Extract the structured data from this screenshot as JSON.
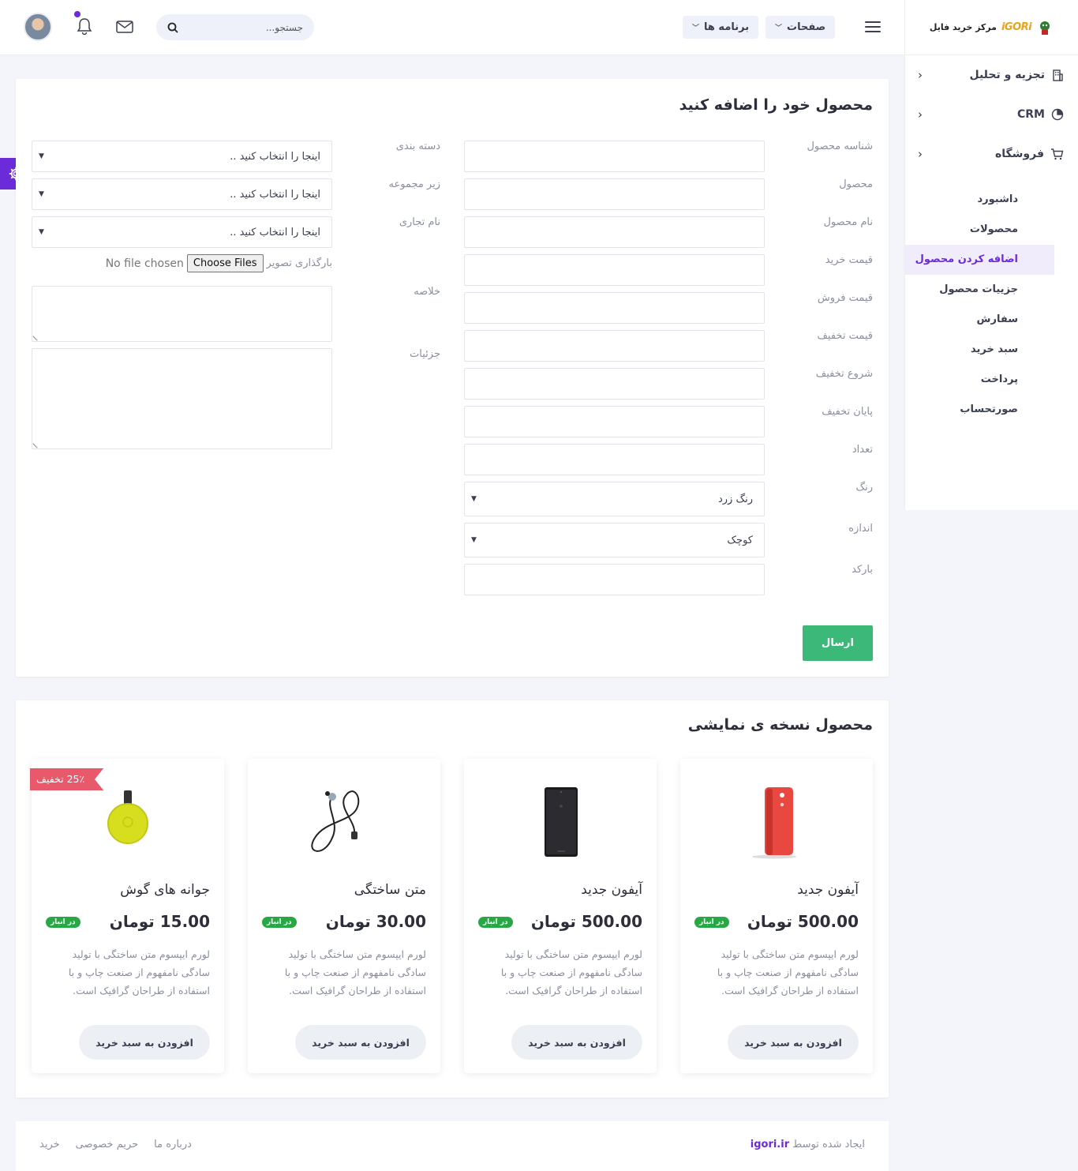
{
  "brand": {
    "logo_text": "مرکز خرید فایل",
    "logo_mark": "iGORi"
  },
  "sidebar": {
    "groups": [
      {
        "label": "تجزیه و تحلیل",
        "icon": "building-icon"
      },
      {
        "label": "CRM",
        "icon": "pie-chart-icon"
      },
      {
        "label": "فروشگاه",
        "icon": "cart-icon"
      }
    ],
    "items": [
      {
        "label": "داشبورد"
      },
      {
        "label": "محصولات"
      },
      {
        "label": "اضافه کردن محصول",
        "active": true
      },
      {
        "label": "جزییات محصول"
      },
      {
        "label": "سفارش"
      },
      {
        "label": "سبد خرید"
      },
      {
        "label": "پرداخت"
      },
      {
        "label": "صورتحساب"
      }
    ]
  },
  "header": {
    "search_placeholder": "جستجو...",
    "nav": [
      {
        "label": "صفحات"
      },
      {
        "label": "برنامه ها"
      }
    ],
    "accent": "#6c2bd9"
  },
  "form": {
    "title": "محصول خود را اضافه کنید",
    "right_labels": [
      "شناسه محصول",
      "محصول",
      "نام محصول",
      "قیمت خرید",
      "قیمت فروش",
      "قیمت تخفیف",
      "شروع تخفیف",
      "پایان تخفیف",
      "تعداد",
      "رنگ",
      "اندازه",
      "بارکد"
    ],
    "color_value": "رنگ زرد",
    "size_value": "کوچک",
    "left_labels": [
      "دسته بندی",
      "زیر مجموعه",
      "نام تجاری",
      "خلاصه",
      "جزئیات"
    ],
    "select_placeholder": "اینجا را انتخاب کنید ..",
    "upload_label": "بارگذاری تصویر",
    "choose_files": "Choose Files",
    "no_file": "No file chosen",
    "submit": "ارسال",
    "submit_color": "#3cb878"
  },
  "showcase": {
    "title": "محصول نسخه ی نمایشی",
    "add_to_cart": "افزودن به سبد خرید",
    "in_stock": "در انبار",
    "description": "لورم ایپسوم متن ساختگی با تولید سادگی نامفهوم از صنعت چاپ و با استفاده از طراحان گرافیک است.",
    "products": [
      {
        "name": "آیفون جدید",
        "price": "500.00 تومان",
        "image": "red-phone-icon"
      },
      {
        "name": "آیفون جدید",
        "price": "500.00 تومان",
        "image": "black-phone-icon"
      },
      {
        "name": "متن ساختگی",
        "price": "30.00 تومان",
        "image": "earphones-icon"
      },
      {
        "name": "جوانه های گوش",
        "price": "15.00 تومان",
        "image": "yellow-chromecast-icon",
        "badge": "25٪ تخفیف"
      }
    ]
  },
  "footer": {
    "credit_prefix": "ایجاد شده توسط",
    "credit_link": "igori.ir",
    "links": [
      "درباره ما",
      "حریم خصوصی",
      "خرید"
    ]
  }
}
